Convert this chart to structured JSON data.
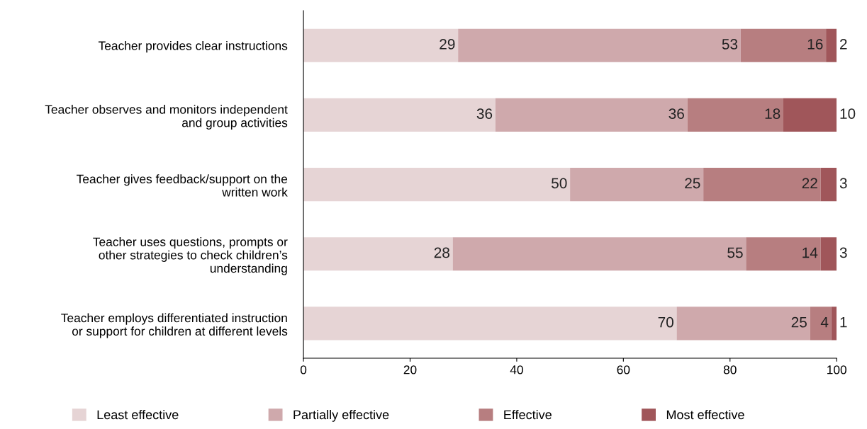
{
  "chart_data": {
    "type": "bar",
    "orientation": "horizontal",
    "stacked": true,
    "categories": [
      "Teacher provides clear instructions",
      "Teacher observes and monitors independent\nand group activities",
      "Teacher gives feedback/support on the\nwritten work",
      "Teacher uses questions, prompts or\nother strategies to check children’s\nunderstanding",
      "Teacher employs differentiated instruction\nor support for children at different levels"
    ],
    "series": [
      {
        "name": "Least effective",
        "color": "#e6d4d5",
        "values": [
          29,
          36,
          50,
          28,
          70
        ]
      },
      {
        "name": "Partially effective",
        "color": "#cfa9ac",
        "values": [
          53,
          36,
          25,
          55,
          25
        ]
      },
      {
        "name": "Effective",
        "color": "#b77e80",
        "values": [
          16,
          18,
          22,
          14,
          4
        ]
      },
      {
        "name": "Most effective",
        "color": "#a0565a",
        "values": [
          2,
          10,
          3,
          3,
          1
        ]
      }
    ],
    "xlim": [
      0,
      100
    ],
    "xticks": [
      0,
      20,
      40,
      60,
      80,
      100
    ],
    "data_labels": true,
    "legend": "bottom",
    "grid": false
  }
}
